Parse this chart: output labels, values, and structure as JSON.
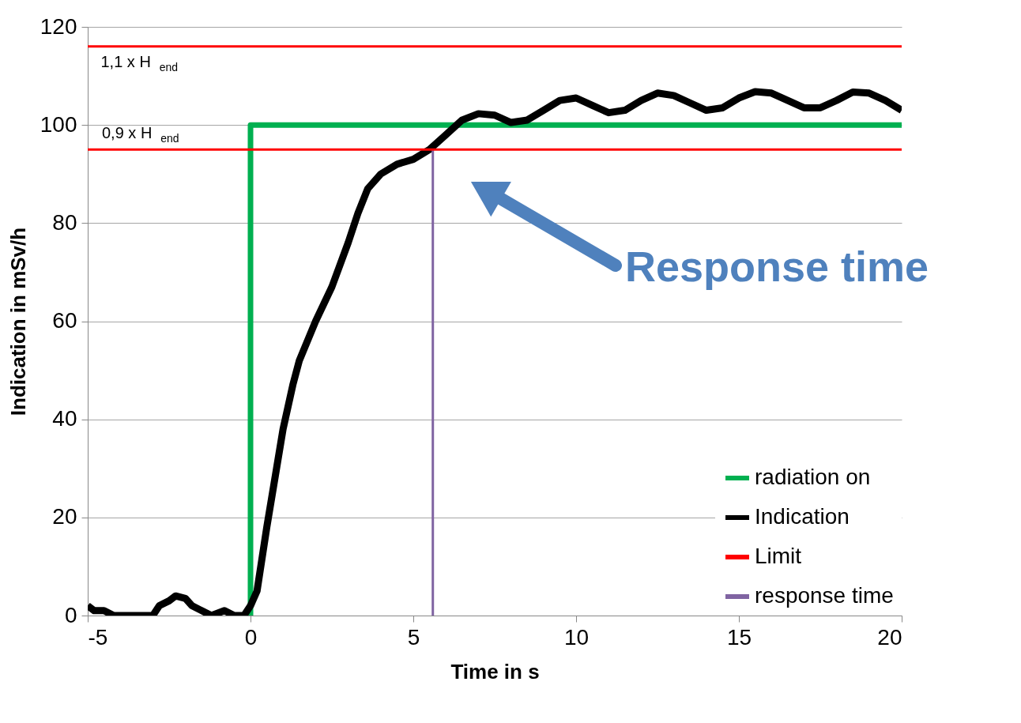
{
  "chart_data": {
    "type": "line",
    "xlabel": "Time in s",
    "ylabel": "Indication in mSv/h",
    "xlim": [
      -5,
      20
    ],
    "xticks": [
      -5,
      0,
      5,
      10,
      15,
      20
    ],
    "ylim": [
      0,
      120
    ],
    "yticks": [
      0,
      20,
      40,
      60,
      80,
      100,
      120
    ],
    "grid": "y",
    "legend": "bottom right",
    "line_style": "solid",
    "marker": "none",
    "series": [
      {
        "name": "radiation on",
        "color": "#00b050",
        "x": [
          0,
          0,
          20
        ],
        "values": [
          0,
          100,
          100
        ]
      },
      {
        "name": "Indication",
        "color": "#000000",
        "x": [
          -5,
          -4.8,
          -4.5,
          -4.2,
          -4,
          -3.5,
          -3,
          -2.8,
          -2.5,
          -2.3,
          -2,
          -1.8,
          -1.5,
          -1.2,
          -0.8,
          -0.5,
          -0.2,
          0,
          0.2,
          0.5,
          0.8,
          1,
          1.3,
          1.5,
          2,
          2.5,
          3,
          3.3,
          3.6,
          4,
          4.5,
          5,
          5.5,
          6,
          6.5,
          7,
          7.5,
          8,
          8.5,
          9,
          9.5,
          10,
          10.5,
          11,
          11.5,
          12,
          12.5,
          13,
          13.5,
          14,
          14.5,
          15,
          15.5,
          16,
          16.5,
          17,
          17.5,
          18,
          18.5,
          19,
          19.5,
          20
        ],
        "values": [
          2,
          1,
          1,
          0,
          0,
          0,
          0,
          2,
          3,
          4,
          3.5,
          2,
          1,
          0,
          1,
          0,
          0,
          2,
          5,
          18,
          30,
          38,
          47,
          52,
          60,
          67,
          76,
          82,
          87,
          90,
          92,
          93,
          95,
          98,
          101,
          102.3,
          102,
          100.5,
          101,
          103,
          105,
          105.5,
          104,
          102.5,
          103,
          105,
          106.5,
          106,
          104.5,
          103,
          103.5,
          105.5,
          106.8,
          106.5,
          105,
          103.5,
          103.5,
          105,
          106.7,
          106.5,
          105,
          103
        ]
      },
      {
        "name": "Limit",
        "color": "#ff0000",
        "x": [
          -5,
          20
        ],
        "values": [
          116,
          116
        ]
      },
      {
        "name": "response time",
        "color": "#8064a2",
        "x": [
          5.6,
          5.6
        ],
        "values": [
          0,
          95
        ]
      }
    ],
    "ref_lines": [
      {
        "axis": "y",
        "value": 95,
        "label": "0,9 x H$_{end}$",
        "color": "#ff0000"
      }
    ],
    "annotations": [
      {
        "text": "1,1 x H$_{end}$",
        "x": -4.6,
        "y": 116
      },
      "Response time"
    ]
  }
}
